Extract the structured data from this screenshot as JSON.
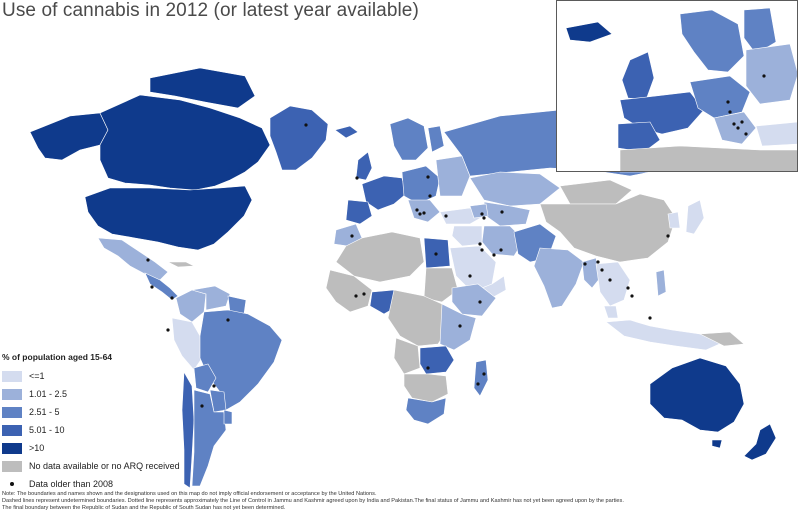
{
  "title": "Use of cannabis in 2012 (or latest year available)",
  "colors": {
    "cat1": "#d4dcef",
    "cat2": "#9cb1da",
    "cat3": "#5f82c4",
    "cat4": "#3c62b2",
    "cat5": "#0f3a8c",
    "nodata": "#bdbdbd",
    "water": "#ffffff",
    "border": "#ffffff",
    "dot": "#111111"
  },
  "legend": {
    "title": "% of population aged 15-64",
    "items": [
      {
        "label": "<=1",
        "color": "#d4dcef"
      },
      {
        "label": "1.01 - 2.5",
        "color": "#9cb1da"
      },
      {
        "label": "2.51 - 5",
        "color": "#5f82c4"
      },
      {
        "label": "5.01 - 10",
        "color": "#3c62b2"
      },
      {
        "label": ">10",
        "color": "#0f3a8c"
      },
      {
        "label": "No data available or no ARQ received",
        "color": "#bdbdbd"
      }
    ],
    "dot_label": "Data older than 2008"
  },
  "notes": [
    "Note: The boundaries and names shown and the designations used on this map do not imply official endorsement or acceptance by the United Nations.",
    "Dashed lines represent undetermined boundaries. Dotted line represents approximately the Line of Control in Jammu and Kashmir agreed upon by India and Pakistan.The final status of Jammu and Kashmir has not yet been agreed upon by the parties.",
    "The final boundary between the Republic of Sudan and the Republic of South Sudan has not yet been determined."
  ]
}
